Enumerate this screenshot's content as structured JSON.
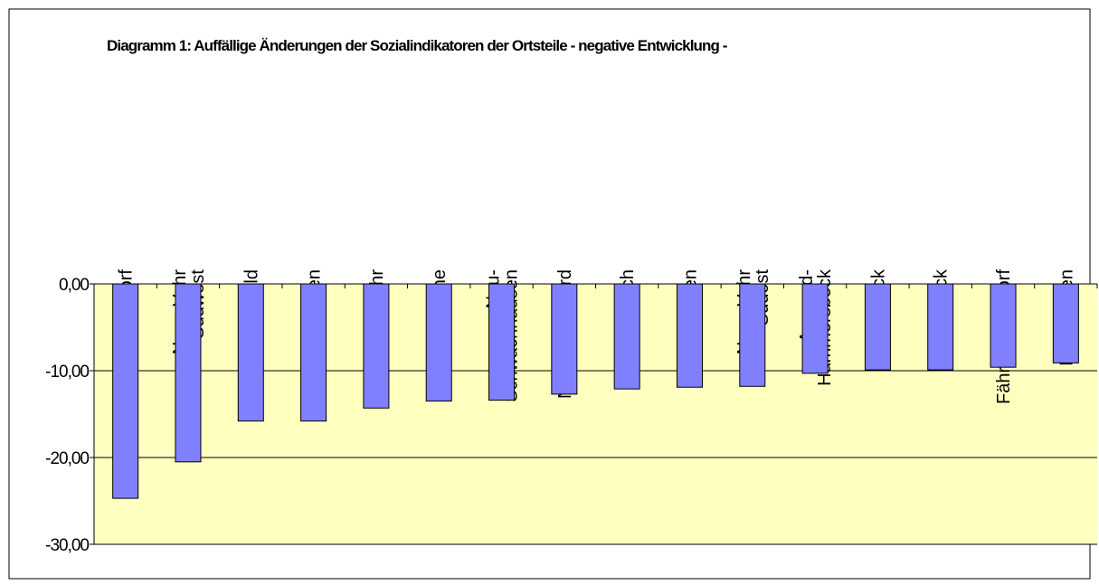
{
  "chart_data": {
    "type": "bar",
    "title": "Diagramm 1:  Auffällige Änderungen der Sozialindikatoren der Ortsteile - negative Entwicklung -",
    "categories": [
      "Mahndorf",
      "Neue Vahr\nSüdwest",
      "Ellener Feld",
      "Arsten",
      "Gartenstadt Vahr",
      "Lehe",
      "Neu-\nSchwachhausen",
      "Neue Vahr Nord",
      "Lehesterdeich",
      "Utbremen",
      "Neue Vahr\nSüdost",
      "Aumund-\nHammersbeck",
      "Schönebeck",
      "Rönnebeck",
      "Fähr-Lobbendorf",
      "Hemelingen"
    ],
    "values": [
      -24.7,
      -20.5,
      -15.8,
      -15.8,
      -14.3,
      -13.5,
      -13.4,
      -12.7,
      -12.1,
      -11.9,
      -11.8,
      -10.3,
      -9.9,
      -9.9,
      -9.6,
      -9.1
    ],
    "color": "#8080ff",
    "ylim": [
      -30,
      0
    ],
    "yticks": [
      {
        "value": 0,
        "label": "0,00"
      },
      {
        "value": -10,
        "label": "-10,00"
      },
      {
        "value": -20,
        "label": "-20,00"
      },
      {
        "value": -30,
        "label": "-30,00"
      }
    ],
    "grid": true
  }
}
